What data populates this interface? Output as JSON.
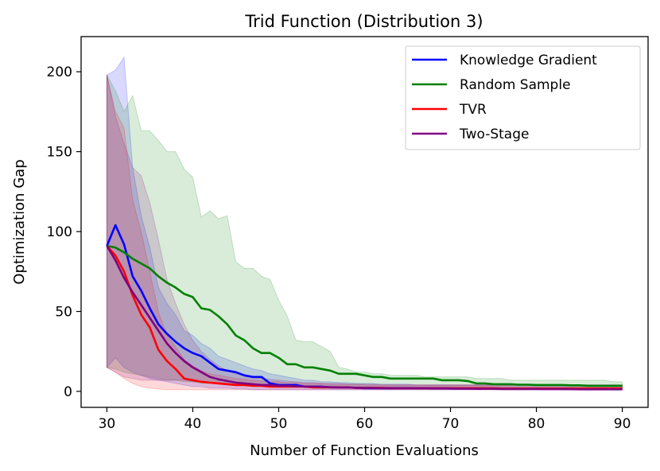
{
  "chart_data": {
    "type": "line",
    "title": "Trid Function (Distribution 3)",
    "xlabel": "Number of Function Evaluations",
    "ylabel": "Optimization Gap",
    "xlim": [
      27,
      93
    ],
    "ylim": [
      -10,
      222
    ],
    "xticks": [
      30,
      40,
      50,
      60,
      70,
      80,
      90
    ],
    "yticks": [
      0,
      50,
      100,
      150,
      200
    ],
    "grid": false,
    "legend_position": "top-right",
    "x": [
      30,
      31,
      32,
      33,
      34,
      35,
      36,
      37,
      38,
      39,
      40,
      41,
      42,
      43,
      44,
      45,
      46,
      47,
      48,
      49,
      50,
      51,
      52,
      53,
      54,
      55,
      56,
      57,
      58,
      59,
      60,
      61,
      62,
      63,
      64,
      65,
      66,
      67,
      68,
      69,
      70,
      71,
      72,
      73,
      74,
      75,
      76,
      77,
      78,
      79,
      80,
      81,
      82,
      83,
      84,
      85,
      86,
      87,
      88,
      89,
      90
    ],
    "series": [
      {
        "name": "Knowledge Gradient",
        "color": "#0000ff",
        "values": [
          91,
          104,
          92,
          72,
          63,
          52,
          42,
          36,
          31,
          27,
          24,
          22,
          18,
          14,
          13,
          12,
          10,
          9,
          9,
          5,
          4,
          4,
          4,
          3,
          3,
          3,
          2.5,
          2.5,
          2.5,
          2.2,
          2,
          2,
          2,
          2,
          2,
          2,
          2,
          2,
          2,
          2,
          1.8,
          1.8,
          1.8,
          1.8,
          1.8,
          1.8,
          1.6,
          1.6,
          1.6,
          1.6,
          1.6,
          1.6,
          1.6,
          1.6,
          1.5,
          1.5,
          1.5,
          1.5,
          1.5,
          1.5,
          1.5
        ],
        "band_upper": [
          198,
          201,
          209,
          140,
          110,
          90,
          65,
          55,
          48,
          38,
          35,
          30,
          27,
          22,
          20,
          18,
          16,
          14,
          13,
          11,
          10,
          9,
          8,
          7,
          7,
          6,
          6,
          5.5,
          5.5,
          5,
          5,
          5,
          4.5,
          4.5,
          4.5,
          4.5,
          4,
          4,
          4,
          4,
          4,
          4,
          4,
          4,
          4,
          4,
          4,
          4,
          4,
          4,
          4,
          4,
          4,
          4,
          4,
          4,
          4,
          4,
          4,
          4,
          4
        ],
        "band_lower": [
          15,
          21,
          15,
          12,
          10,
          8,
          7,
          6,
          5,
          4,
          3,
          3,
          2,
          2,
          2,
          1.5,
          1.5,
          1,
          1,
          1,
          1,
          1,
          1,
          1,
          1,
          1,
          1,
          1,
          1,
          1,
          1,
          1,
          1,
          1,
          1,
          1,
          1,
          1,
          1,
          1,
          1,
          1,
          1,
          1,
          1,
          1,
          1,
          1,
          1,
          1,
          1,
          1,
          1,
          1,
          1,
          1,
          1,
          1,
          1,
          1,
          1
        ]
      },
      {
        "name": "Random Sample",
        "color": "#008000",
        "values": [
          91,
          90,
          87,
          83,
          80,
          77,
          72,
          68,
          65,
          61,
          59,
          52,
          51,
          47,
          42,
          35,
          32,
          27,
          24,
          24,
          21,
          17,
          17,
          15,
          15,
          14,
          13,
          11,
          11,
          11,
          10,
          9,
          9,
          8,
          8,
          8,
          8,
          8,
          8,
          7,
          7,
          7,
          6.5,
          5,
          5,
          4.5,
          4.5,
          4.5,
          4.2,
          4.2,
          4,
          4,
          4,
          4,
          3.8,
          3.8,
          3.5,
          3.5,
          3.5,
          3.5,
          3.5
        ],
        "band_upper": [
          198,
          188,
          175,
          185,
          163,
          163,
          157,
          150,
          150,
          139,
          134,
          109,
          113,
          108,
          110,
          81,
          77,
          77,
          72,
          70,
          57,
          47,
          32,
          31,
          31,
          28,
          25,
          15,
          14,
          12,
          12,
          11,
          11,
          10,
          10,
          10,
          10,
          9,
          9,
          9,
          9,
          9,
          9,
          8,
          8,
          8,
          8,
          7,
          7,
          7,
          7,
          7,
          7,
          7,
          7,
          7,
          7,
          7,
          7,
          6,
          6
        ],
        "band_lower": [
          15,
          14,
          12,
          11,
          10,
          9,
          8,
          7,
          7,
          6,
          6,
          5,
          5,
          5,
          5,
          4.5,
          4.5,
          4,
          4,
          4,
          3.5,
          3.5,
          3.5,
          3,
          3,
          3,
          3,
          3,
          2.5,
          2.5,
          2.5,
          2.5,
          2.5,
          2.5,
          2.5,
          2.5,
          2,
          2,
          2,
          2,
          2,
          2,
          2,
          2,
          2,
          2,
          2,
          2,
          2,
          2,
          2,
          2,
          2,
          2,
          2,
          2,
          2,
          2,
          2,
          2,
          2
        ]
      },
      {
        "name": "TVR",
        "color": "#ff0000",
        "values": [
          91,
          85,
          75,
          60,
          48,
          40,
          26,
          19,
          14,
          8,
          7,
          6,
          5.5,
          5,
          4.5,
          4,
          4,
          3.5,
          3.5,
          3,
          3,
          3,
          3,
          3,
          2.5,
          2.5,
          2.5,
          2.5,
          2.5,
          2.2,
          2.2,
          2.2,
          2.2,
          2,
          2,
          2,
          2,
          2,
          2,
          2,
          2,
          2,
          2,
          2,
          2,
          2,
          1.8,
          1.8,
          1.8,
          1.8,
          1.8,
          1.8,
          1.8,
          1.8,
          1.8,
          1.8,
          1.8,
          1.8,
          1.8,
          1.8,
          1.8
        ],
        "band_upper": [
          198,
          175,
          165,
          120,
          100,
          75,
          50,
          35,
          28,
          20,
          16,
          13,
          11,
          10,
          9,
          8,
          7.5,
          7,
          6.5,
          6,
          6,
          5.5,
          5.5,
          5,
          5,
          5,
          4.5,
          4.5,
          4.5,
          4.5,
          4,
          4,
          4,
          4,
          4,
          4,
          4,
          4,
          4,
          4,
          4,
          4,
          4,
          4,
          4,
          4,
          4,
          4,
          4,
          4,
          4,
          4,
          4,
          4,
          4,
          4,
          4,
          4,
          4,
          4,
          4
        ],
        "band_lower": [
          15,
          12,
          8,
          5,
          3,
          2,
          1.5,
          1,
          1,
          1,
          1,
          1,
          1,
          1,
          1,
          1,
          1,
          1,
          1,
          1,
          1,
          1,
          1,
          1,
          1,
          1,
          1,
          1,
          1,
          1,
          1,
          1,
          1,
          1,
          1,
          1,
          1,
          1,
          1,
          1,
          1,
          1,
          1,
          1,
          1,
          1,
          1,
          1,
          1,
          1,
          1,
          1,
          1,
          1,
          1,
          1,
          1,
          1,
          1,
          1,
          1
        ]
      },
      {
        "name": "Two-Stage",
        "color": "#800080",
        "values": [
          91,
          82,
          71,
          62,
          54,
          46,
          38,
          30,
          24,
          19,
          15,
          12,
          9,
          7.5,
          6.5,
          5.5,
          5,
          4.5,
          4,
          4,
          3.5,
          3.5,
          3.2,
          3,
          3,
          2.8,
          2.6,
          2.5,
          2.4,
          2.3,
          2.2,
          2.1,
          2,
          2,
          2,
          2,
          1.9,
          1.9,
          1.8,
          1.8,
          1.8,
          1.7,
          1.7,
          1.6,
          1.6,
          1.6,
          1.5,
          1.5,
          1.5,
          1.5,
          1.5,
          1.4,
          1.4,
          1.4,
          1.4,
          1.3,
          1.3,
          1.3,
          1.3,
          1.3,
          1.3
        ],
        "band_upper": [
          198,
          172,
          155,
          140,
          135,
          118,
          95,
          70,
          55,
          42,
          32,
          25,
          20,
          16,
          13,
          11,
          10,
          9,
          8,
          7.5,
          7,
          6.5,
          6,
          5.5,
          5.5,
          5,
          5,
          5,
          4.5,
          4.5,
          4.5,
          4.5,
          4,
          4,
          4,
          4,
          4,
          4,
          4,
          4,
          4,
          4,
          4,
          4,
          4,
          4,
          4,
          4,
          4,
          4,
          4,
          4,
          4,
          4,
          4,
          4,
          4,
          4,
          4,
          4,
          4
        ],
        "band_lower": [
          15,
          12,
          9,
          8,
          7,
          7,
          7,
          7,
          7,
          7,
          6,
          6,
          5.5,
          5,
          5,
          4.5,
          4.5,
          4,
          4,
          4,
          3.5,
          3.5,
          3.5,
          3,
          3,
          3,
          3,
          3,
          2.5,
          2.5,
          2.5,
          2.5,
          2.5,
          2.5,
          2,
          2,
          2,
          2,
          2,
          2,
          2,
          2,
          2,
          2,
          2,
          2,
          2,
          2,
          2,
          2,
          2,
          2,
          2,
          2,
          2,
          2,
          2,
          2,
          2,
          2,
          2
        ]
      }
    ]
  }
}
